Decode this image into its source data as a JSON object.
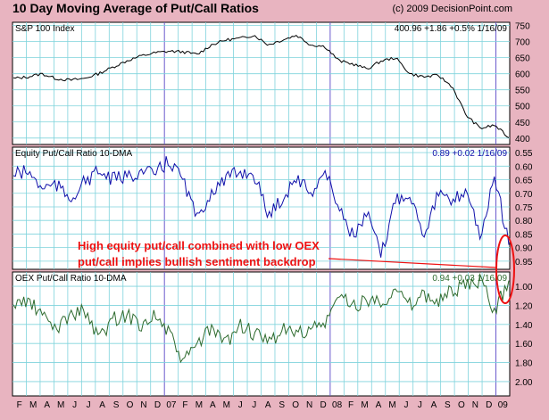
{
  "header": {
    "title": "10 Day Moving Average of Put/Call Ratios",
    "credit": "(c) 2009 DecisionPoint.com"
  },
  "colors": {
    "background": "#e8b4c0",
    "plot_bg": "#ffffff",
    "grid": "#7fd3dc",
    "year_marker": "#6a5acd",
    "spx_line": "#000000",
    "equity_line": "#1010aa",
    "oex_line": "#2e6b2e",
    "annotation": "#ee1111"
  },
  "chart_data": [
    {
      "type": "line",
      "panel": "spx",
      "name": "S&P 100 Index",
      "info": "400.96 +1.86 +0.5% 1/16/09",
      "ylim": [
        380,
        760
      ],
      "yticks": [
        "750",
        "700",
        "650",
        "600",
        "550",
        "500",
        "450",
        "400"
      ],
      "x": [
        "2006-02",
        "2006-03",
        "2006-04",
        "2006-05",
        "2006-06",
        "2006-07",
        "2006-08",
        "2006-09",
        "2006-10",
        "2006-11",
        "2006-12",
        "2007-01",
        "2007-02",
        "2007-03",
        "2007-04",
        "2007-05",
        "2007-06",
        "2007-07",
        "2007-08",
        "2007-09",
        "2007-10",
        "2007-11",
        "2007-12",
        "2008-01",
        "2008-02",
        "2008-03",
        "2008-04",
        "2008-05",
        "2008-06",
        "2008-07",
        "2008-08",
        "2008-09",
        "2008-10",
        "2008-11",
        "2008-12",
        "2009-01"
      ],
      "values": [
        585,
        590,
        600,
        585,
        580,
        585,
        600,
        620,
        640,
        655,
        665,
        670,
        668,
        660,
        690,
        705,
        710,
        720,
        690,
        705,
        720,
        690,
        685,
        640,
        630,
        615,
        640,
        650,
        600,
        590,
        595,
        560,
        470,
        430,
        440,
        401
      ],
      "grid": true
    },
    {
      "type": "line",
      "panel": "equity",
      "name": "Equity Put/Call Ratio 10-DMA",
      "info": "0.89 +0.02 1/16/09",
      "ylim": [
        0.53,
        0.98
      ],
      "yticks": [
        "0.55",
        "0.60",
        "0.65",
        "0.70",
        "0.75",
        "0.80",
        "0.85",
        "0.90",
        "0.95"
      ],
      "x": [
        "2006-02",
        "2006-03",
        "2006-04",
        "2006-05",
        "2006-06",
        "2006-07",
        "2006-08",
        "2006-09",
        "2006-10",
        "2006-11",
        "2006-12",
        "2007-01",
        "2007-02",
        "2007-03",
        "2007-04",
        "2007-05",
        "2007-06",
        "2007-07",
        "2007-08",
        "2007-09",
        "2007-10",
        "2007-11",
        "2007-12",
        "2008-01",
        "2008-02",
        "2008-03",
        "2008-04",
        "2008-05",
        "2008-06",
        "2008-07",
        "2008-08",
        "2008-09",
        "2008-10",
        "2008-11",
        "2008-12",
        "2009-01"
      ],
      "values": [
        0.63,
        0.62,
        0.68,
        0.67,
        0.72,
        0.66,
        0.62,
        0.65,
        0.64,
        0.62,
        0.63,
        0.58,
        0.65,
        0.8,
        0.69,
        0.65,
        0.62,
        0.63,
        0.78,
        0.72,
        0.64,
        0.7,
        0.62,
        0.75,
        0.86,
        0.78,
        0.93,
        0.72,
        0.7,
        0.85,
        0.7,
        0.74,
        0.68,
        0.86,
        0.64,
        0.89
      ],
      "grid": true
    },
    {
      "type": "line",
      "panel": "oex",
      "name": "OEX Put/Call Ratio 10-DMA",
      "info": "0.94 +0.03 1/16/09",
      "ylim": [
        0.85,
        2.15
      ],
      "yticks": [
        "1.00",
        "1.20",
        "1.40",
        "1.60",
        "1.80",
        "2.00"
      ],
      "x": [
        "2006-02",
        "2006-03",
        "2006-04",
        "2006-05",
        "2006-06",
        "2006-07",
        "2006-08",
        "2006-09",
        "2006-10",
        "2006-11",
        "2006-12",
        "2007-01",
        "2007-02",
        "2007-03",
        "2007-04",
        "2007-05",
        "2007-06",
        "2007-07",
        "2007-08",
        "2007-09",
        "2007-10",
        "2007-11",
        "2007-12",
        "2008-01",
        "2008-02",
        "2008-03",
        "2008-04",
        "2008-05",
        "2008-06",
        "2008-07",
        "2008-08",
        "2008-09",
        "2008-10",
        "2008-11",
        "2008-12",
        "2009-01"
      ],
      "values": [
        1.2,
        1.15,
        1.3,
        1.45,
        1.3,
        1.25,
        1.55,
        1.35,
        1.3,
        1.4,
        1.3,
        1.5,
        1.8,
        1.6,
        1.45,
        1.6,
        1.4,
        1.5,
        1.6,
        1.45,
        1.5,
        1.45,
        1.4,
        1.1,
        1.2,
        1.15,
        1.15,
        1.05,
        1.2,
        1.1,
        1.15,
        1.05,
        1.0,
        0.95,
        1.25,
        0.94
      ],
      "grid": true
    }
  ],
  "x_axis": {
    "month_labels": [
      "F",
      "M",
      "A",
      "M",
      "J",
      "J",
      "A",
      "S",
      "O",
      "N",
      "D",
      "07",
      "F",
      "M",
      "A",
      "M",
      "J",
      "J",
      "A",
      "S",
      "O",
      "N",
      "D",
      "08",
      "F",
      "M",
      "A",
      "M",
      "J",
      "J",
      "A",
      "S",
      "O",
      "N",
      "D",
      "09"
    ]
  },
  "annotation": {
    "line1": "High equity put/call combined with low OEX",
    "line2": "put/call implies bullish sentiment backdrop"
  }
}
